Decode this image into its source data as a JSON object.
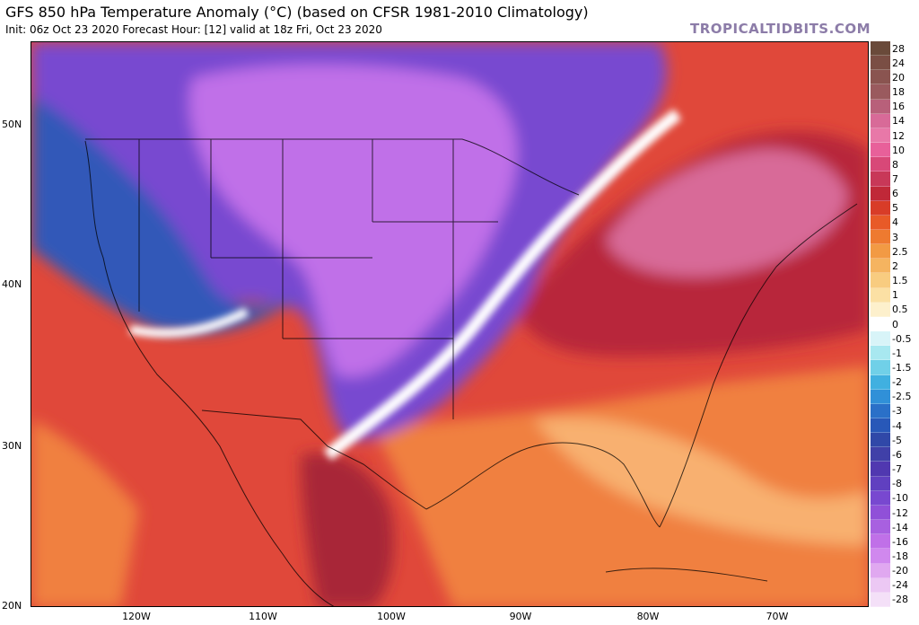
{
  "header": {
    "title": "GFS 850 hPa Temperature Anomaly (°C) (based on CFSR 1981-2010 Climatology)",
    "subtitle": "Init: 06z Oct 23 2020   Forecast Hour: [12]   valid at 18z Fri, Oct 23 2020",
    "brand": "TROPICALTIDBITS.COM"
  },
  "axes": {
    "lat_labels": [
      "50N",
      "40N",
      "30N",
      "20N"
    ],
    "lon_labels": [
      "120W",
      "110W",
      "100W",
      "90W",
      "80W",
      "70W"
    ]
  },
  "colorbar": {
    "labels": [
      "28",
      "24",
      "20",
      "18",
      "16",
      "14",
      "12",
      "10",
      "8",
      "7",
      "6",
      "5",
      "4",
      "3",
      "2.5",
      "2",
      "1.5",
      "1",
      "0.5",
      "0",
      "-0.5",
      "-1",
      "-1.5",
      "-2",
      "-2.5",
      "-3",
      "-4",
      "-5",
      "-6",
      "-7",
      "-8",
      "-10",
      "-12",
      "-14",
      "-16",
      "-18",
      "-20",
      "-24",
      "-28"
    ],
    "colors": [
      "#6a4a3a",
      "#7a4e44",
      "#8a5450",
      "#9a5a5e",
      "#b8607a",
      "#d86a98",
      "#e878a8",
      "#e8609a",
      "#d84878",
      "#c83858",
      "#c02838",
      "#d83c28",
      "#e85a28",
      "#ee7a30",
      "#f29a44",
      "#f5b460",
      "#f8cc80",
      "#fbe0a4",
      "#fdf0cc",
      "#ffffff",
      "#d8f4f8",
      "#a8e8f0",
      "#70d0e8",
      "#40b0e0",
      "#3090d8",
      "#2a70c8",
      "#2858b8",
      "#3048a8",
      "#4040a8",
      "#5038b0",
      "#6040c0",
      "#7848d0",
      "#9050d8",
      "#a860e0",
      "#c070e8",
      "#d088ee",
      "#e0a8f0",
      "#ecc8f4",
      "#f4e0f8"
    ]
  },
  "map": {
    "colors": {
      "ocean_warm": "#e0483a",
      "deep_red": "#b8283a",
      "orange": "#f08040",
      "light_orange": "#f8b070",
      "pink": "#d86a98",
      "magenta": "#c070e8",
      "purple": "#7848d0",
      "blue": "#3058b8",
      "white": "#ffffff"
    }
  }
}
